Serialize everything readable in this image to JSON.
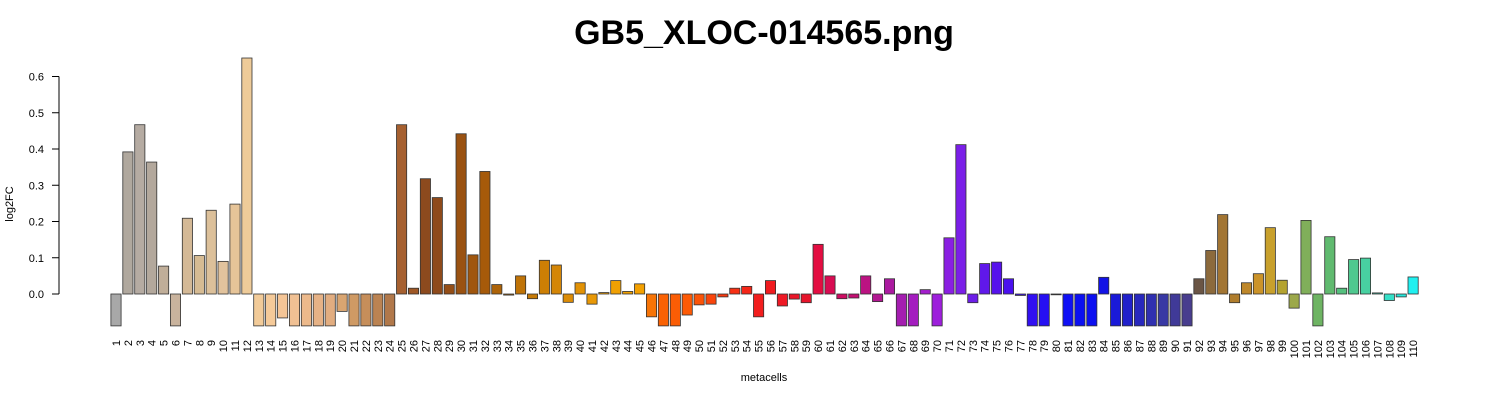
{
  "chart_data": {
    "type": "bar",
    "title": "GB5_XLOC-014565.png",
    "xlabel": "metacells",
    "ylabel": "log2FC",
    "ylim": [
      -0.09,
      0.65
    ],
    "yticks": [
      0.0,
      0.1,
      0.2,
      0.3,
      0.4,
      0.5,
      0.6
    ],
    "ytick_labels": [
      "0.0",
      "0.1",
      "0.2",
      "0.3",
      "0.4",
      "0.5",
      "0.6"
    ],
    "grid": false,
    "categories": [
      "1",
      "2",
      "3",
      "4",
      "5",
      "6",
      "7",
      "8",
      "9",
      "10",
      "11",
      "12",
      "13",
      "14",
      "15",
      "16",
      "17",
      "18",
      "19",
      "20",
      "21",
      "22",
      "23",
      "24",
      "25",
      "26",
      "27",
      "28",
      "29",
      "30",
      "31",
      "32",
      "33",
      "34",
      "35",
      "36",
      "37",
      "38",
      "39",
      "40",
      "41",
      "42",
      "43",
      "44",
      "45",
      "46",
      "47",
      "48",
      "49",
      "50",
      "51",
      "52",
      "53",
      "54",
      "55",
      "56",
      "57",
      "58",
      "59",
      "60",
      "61",
      "62",
      "63",
      "64",
      "65",
      "66",
      "67",
      "68",
      "69",
      "70",
      "71",
      "72",
      "73",
      "74",
      "75",
      "76",
      "77",
      "78",
      "79",
      "80",
      "81",
      "82",
      "83",
      "84",
      "85",
      "86",
      "87",
      "88",
      "89",
      "90",
      "91",
      "92",
      "93",
      "94",
      "95",
      "96",
      "97",
      "98",
      "99",
      "100",
      "101",
      "102",
      "103",
      "104",
      "105",
      "106",
      "107",
      "108",
      "109",
      "110"
    ],
    "values": [
      -0.088,
      0.392,
      0.467,
      0.364,
      0.077,
      -0.088,
      0.209,
      0.106,
      0.231,
      0.09,
      0.248,
      0.651,
      -0.088,
      -0.088,
      -0.066,
      -0.088,
      -0.088,
      -0.088,
      -0.088,
      -0.048,
      -0.088,
      -0.088,
      -0.088,
      -0.088,
      0.467,
      0.016,
      0.318,
      0.266,
      0.026,
      0.442,
      0.108,
      0.338,
      0.026,
      -0.003,
      0.05,
      -0.013,
      0.093,
      0.08,
      -0.023,
      0.031,
      -0.028,
      0.004,
      0.037,
      0.007,
      0.028,
      -0.063,
      -0.088,
      -0.088,
      -0.058,
      -0.03,
      -0.028,
      -0.008,
      0.016,
      0.021,
      -0.063,
      0.037,
      -0.033,
      -0.014,
      -0.024,
      0.137,
      0.05,
      -0.013,
      -0.011,
      0.05,
      -0.021,
      0.042,
      -0.088,
      -0.088,
      0.012,
      -0.088,
      0.155,
      0.412,
      -0.024,
      0.084,
      0.088,
      0.042,
      -0.004,
      -0.088,
      -0.088,
      -0.002,
      -0.088,
      -0.088,
      -0.088,
      0.046,
      -0.088,
      -0.088,
      -0.088,
      -0.088,
      -0.088,
      -0.088,
      -0.088,
      0.042,
      0.12,
      0.219,
      -0.024,
      0.031,
      0.056,
      0.183,
      0.038,
      -0.039,
      0.203,
      -0.088,
      0.158,
      0.016,
      0.095,
      0.099,
      0.003,
      -0.018,
      -0.008,
      0.047
    ],
    "colors": [
      "#a8a8a8",
      "#b0a89e",
      "#b5aba2",
      "#b3a89c",
      "#c0ae99",
      "#c9b39d",
      "#d4b996",
      "#d6bb93",
      "#dcc09a",
      "#e2c39d",
      "#e6c498",
      "#eecb99",
      "#f2cb99",
      "#f5ca99",
      "#f5c596",
      "#f0c093",
      "#ecb98b",
      "#e6b286",
      "#e2ad80",
      "#d9a571",
      "#cf9a64",
      "#c68e5a",
      "#bb8352",
      "#b1784a",
      "#a66030",
      "#9f5826",
      "#8c4a1e",
      "#8e4a1b",
      "#944e17",
      "#9a5212",
      "#a0560e",
      "#a65a0a",
      "#ad6308",
      "#b46a07",
      "#bf7307",
      "#c67a06",
      "#cd7f05",
      "#d48606",
      "#dc8c06",
      "#e29206",
      "#e89806",
      "#ec9d05",
      "#f0a003",
      "#f0a002",
      "#f3a000",
      "#f77406",
      "#fa6204",
      "#fb5d05",
      "#fd5a05",
      "#fb5408",
      "#f9450c",
      "#f93a10",
      "#f73014",
      "#f42618",
      "#f21e1e",
      "#f01b1f",
      "#ee1925",
      "#ea1628",
      "#e6142b",
      "#e30d41",
      "#d80c52",
      "#cd0d62",
      "#c40f73",
      "#bb1382",
      "#b21892",
      "#ab1aa0",
      "#a41db0",
      "#a41dbf",
      "#a31ecd",
      "#9d1fdb",
      "#8a1fe2",
      "#7b1fe8",
      "#6d1ee8",
      "#6018ea",
      "#5612ec",
      "#4a10ee",
      "#3d10f0",
      "#3110f1",
      "#2610f2",
      "#1a10f3",
      "#1010f4",
      "#0c10f1",
      "#0c0ff0",
      "#1212e6",
      "#1a1ad8",
      "#2020cb",
      "#2828bd",
      "#3030b0",
      "#3838a4",
      "#403a98",
      "#483d8e",
      "#6a5545",
      "#8c6a3c",
      "#a27533",
      "#b07d2c",
      "#be872a",
      "#cb9329",
      "#c8a02c",
      "#b4a330",
      "#9ca84a",
      "#80af5a",
      "#6eb463",
      "#60ba6f",
      "#55c07e",
      "#4fc88f",
      "#48d1a1",
      "#40d8b4",
      "#36e0c8",
      "#28e8dc",
      "#20f0f0"
    ]
  }
}
